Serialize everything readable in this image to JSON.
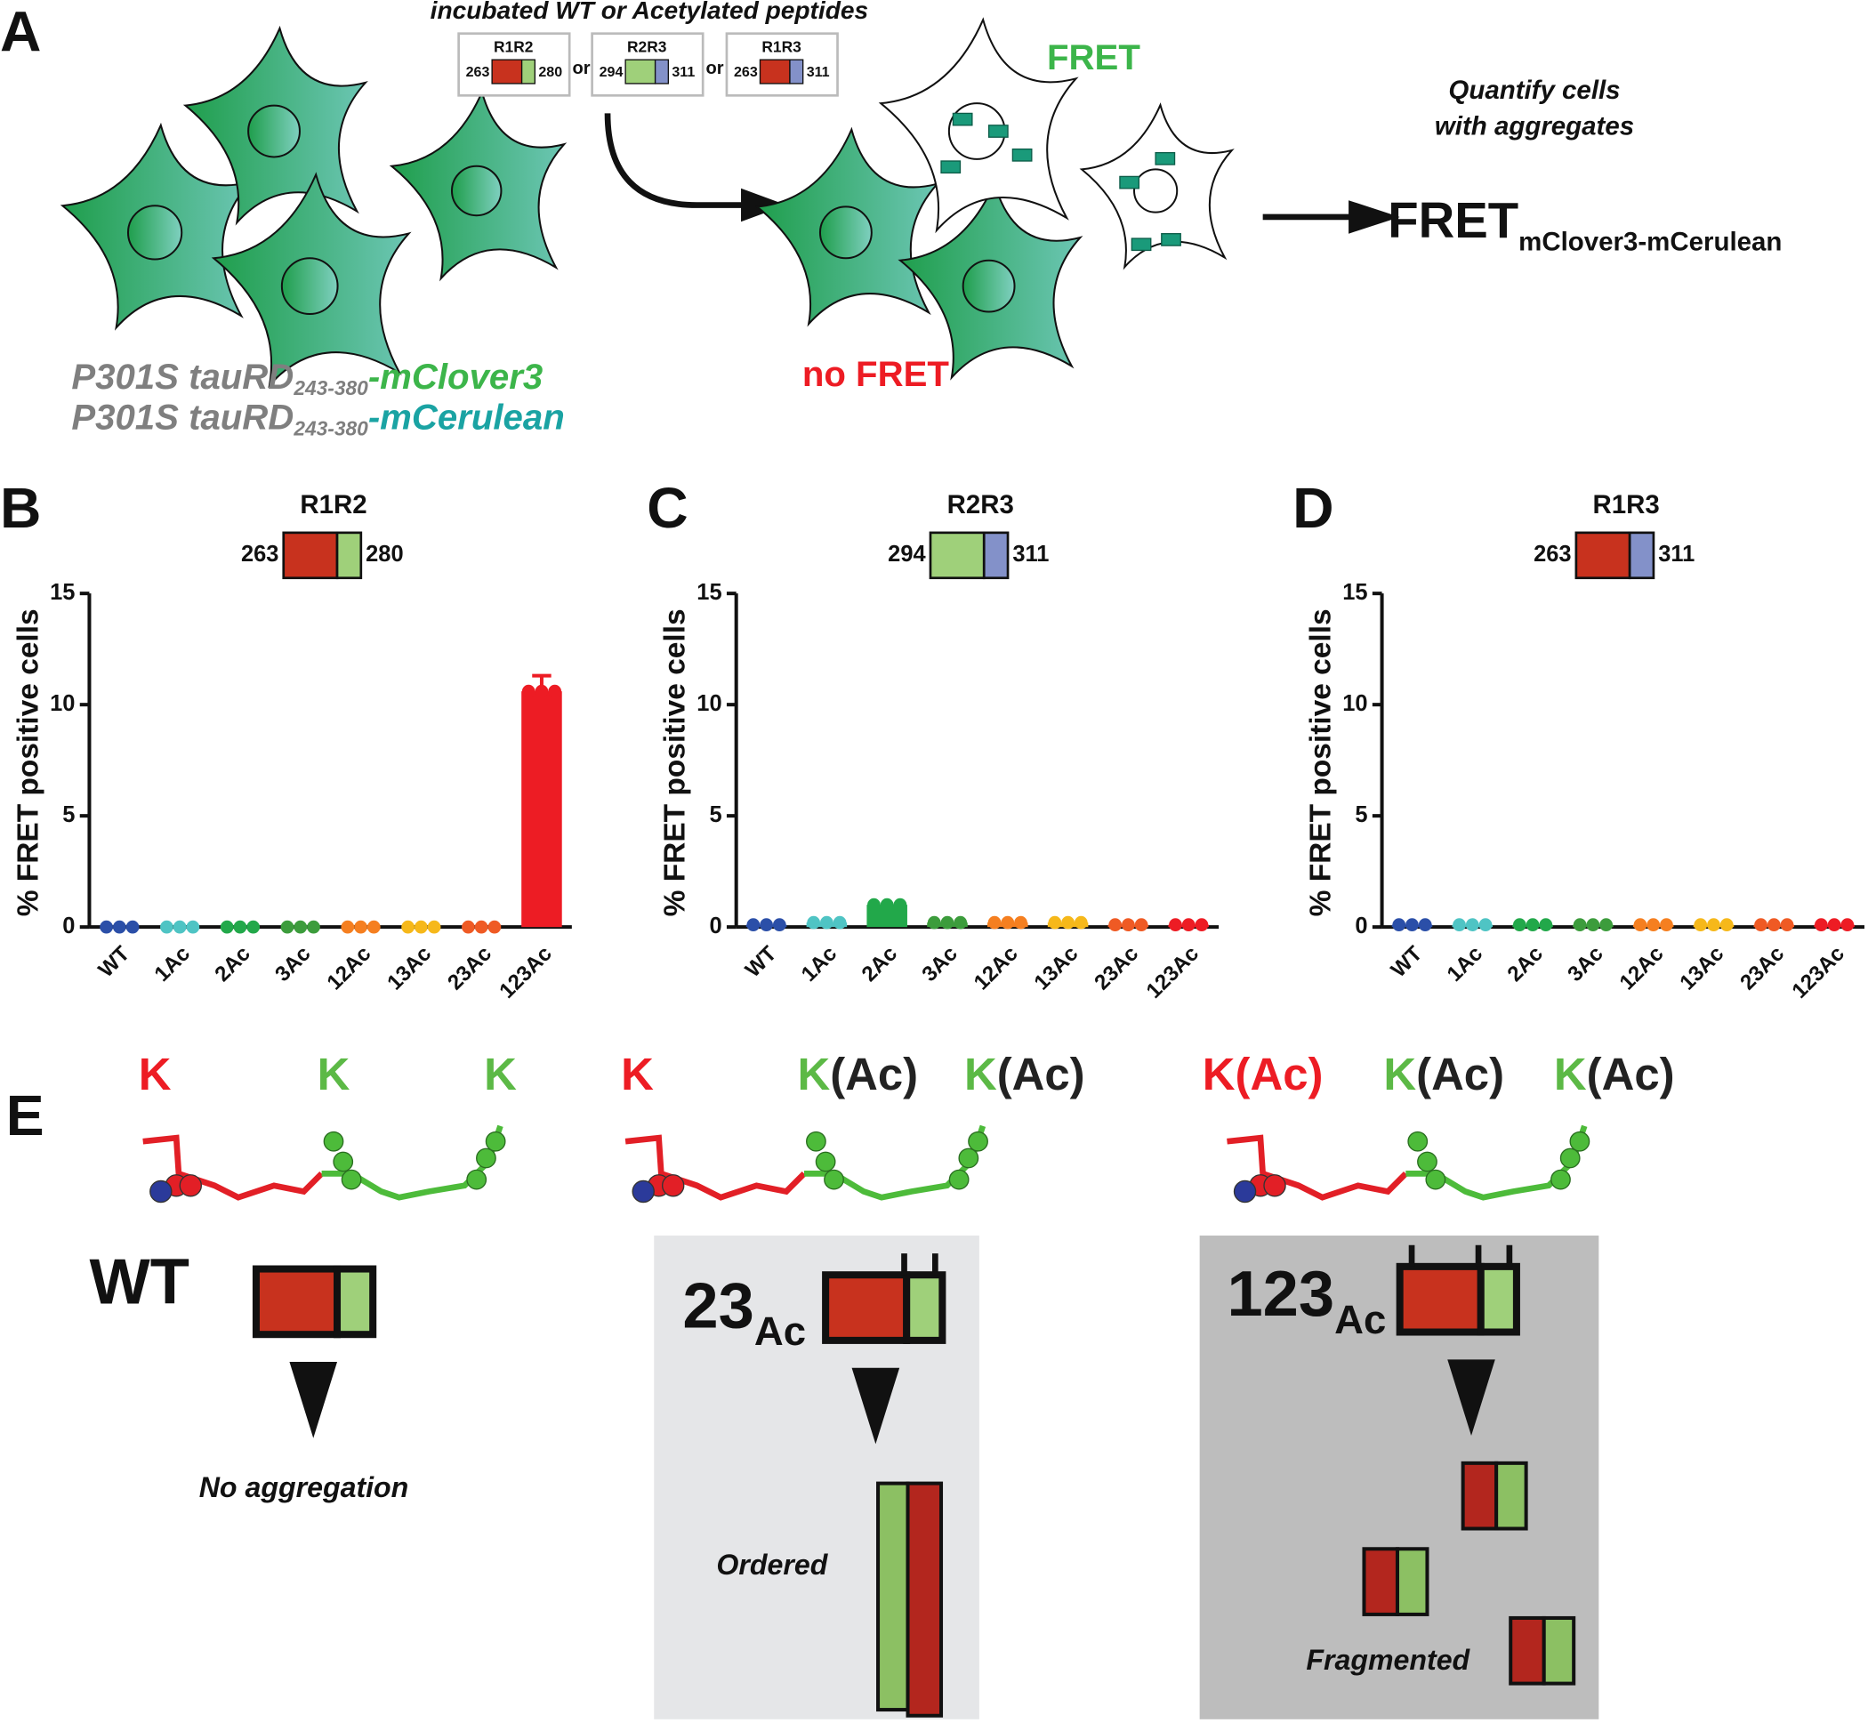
{
  "panel_a": {
    "letter": "A",
    "heading": "incubated WT or Acetylated peptides",
    "peptides": [
      {
        "name": "R1R2",
        "start": 263,
        "end": 280,
        "colors": [
          "#c8321e",
          "#9fd07a"
        ]
      },
      {
        "name": "R2R3",
        "start": 294,
        "end": 311,
        "colors": [
          "#9fd07a",
          "#8391c9"
        ]
      },
      {
        "name": "R1R3",
        "start": 263,
        "end": 311,
        "colors": [
          "#c8321e",
          "#8391c9"
        ]
      }
    ],
    "separator": "or",
    "fret": "FRET",
    "no_fret": "no FRET",
    "quantify": [
      "Quantify cells",
      "with aggregates"
    ],
    "readout": "FRET",
    "readout_sub": "mClover3-mCerulean",
    "construct": "P301S tauRD",
    "construct_range": "243-380",
    "tags": [
      "-mClover3",
      "-mCerulean"
    ]
  },
  "chart_data": [
    {
      "type": "bar",
      "panel": "B",
      "title": "R1R2",
      "start": 263,
      "end": 280,
      "peptide_colors": [
        "#c8321e",
        "#9fd07a"
      ],
      "ylabel": "% FRET positive cells",
      "categories": [
        "WT",
        "1Ac",
        "2Ac",
        "3Ac",
        "12Ac",
        "13Ac",
        "23Ac",
        "123Ac"
      ],
      "values": [
        0,
        0,
        0,
        0,
        0,
        0,
        0,
        10.6
      ],
      "errors": [
        0,
        0,
        0,
        0,
        0,
        0,
        0,
        0.7
      ],
      "colors": [
        "#2b4fa8",
        "#4fc4c4",
        "#22a84a",
        "#3c9c3c",
        "#f57f20",
        "#f6b81a",
        "#ef5a24",
        "#ed1c24"
      ],
      "ylim": [
        0,
        15
      ],
      "yticks": [
        0,
        5,
        10,
        15
      ]
    },
    {
      "type": "bar",
      "panel": "C",
      "title": "R2R3",
      "start": 294,
      "end": 311,
      "peptide_colors": [
        "#9fd07a",
        "#8391c9"
      ],
      "ylabel": "% FRET positive cells",
      "categories": [
        "WT",
        "1Ac",
        "2Ac",
        "3Ac",
        "12Ac",
        "13Ac",
        "23Ac",
        "123Ac"
      ],
      "values": [
        0.1,
        0.2,
        1.0,
        0.2,
        0.2,
        0.2,
        0.1,
        0.1
      ],
      "colors": [
        "#2b4fa8",
        "#4fc4c4",
        "#22a84a",
        "#3c9c3c",
        "#f57f20",
        "#f6b81a",
        "#ef5a24",
        "#ed1c24"
      ],
      "ylim": [
        0,
        15
      ],
      "yticks": [
        0,
        5,
        10,
        15
      ]
    },
    {
      "type": "bar",
      "panel": "D",
      "title": "R1R3",
      "start": 263,
      "end": 311,
      "peptide_colors": [
        "#c8321e",
        "#8391c9"
      ],
      "ylabel": "% FRET positive cells",
      "categories": [
        "WT",
        "1Ac",
        "2Ac",
        "3Ac",
        "12Ac",
        "13Ac",
        "23Ac",
        "123Ac"
      ],
      "values": [
        0.1,
        0.1,
        0.1,
        0.1,
        0.1,
        0.1,
        0.1,
        0.1
      ],
      "colors": [
        "#2b4fa8",
        "#4fc4c4",
        "#22a84a",
        "#3c9c3c",
        "#f57f20",
        "#f6b81a",
        "#ef5a24",
        "#ed1c24"
      ],
      "ylim": [
        0,
        15
      ],
      "yticks": [
        0,
        5,
        10,
        15
      ]
    }
  ],
  "panel_e": {
    "letter": "E",
    "states": [
      {
        "residues": [
          {
            "k": "K"
          },
          {
            "k": "K"
          },
          {
            "k": "K"
          }
        ],
        "label": "WT",
        "caption": "No aggregation"
      },
      {
        "residues": [
          {
            "k": "K"
          },
          {
            "k": "K",
            "mod": "(Ac)"
          },
          {
            "k": "K",
            "mod": "(Ac)"
          }
        ],
        "label": "23",
        "label_sub": "Ac",
        "caption": "Ordered"
      },
      {
        "residues": [
          {
            "k": "K",
            "mod": "(Ac)"
          },
          {
            "k": "K",
            "mod": "(Ac)"
          },
          {
            "k": "K",
            "mod": "(Ac)"
          }
        ],
        "label": "123",
        "label_sub": "Ac",
        "caption": "Fragmented"
      }
    ]
  }
}
